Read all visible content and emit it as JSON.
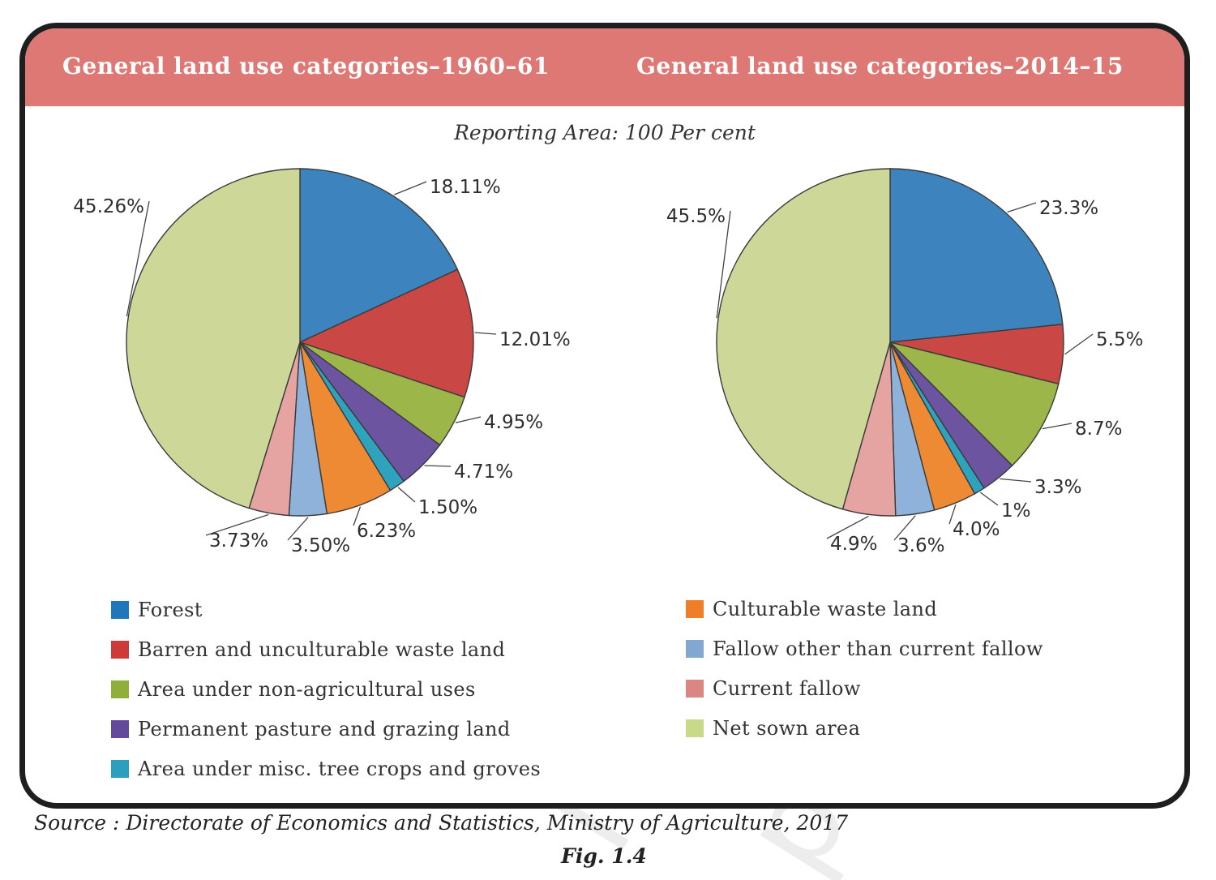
{
  "header": {
    "left_title": "General land use categories–1960–61",
    "right_title": "General land use categories–2014–15"
  },
  "subtitle": "Reporting Area: 100 Per cent",
  "chart_data": [
    {
      "type": "pie",
      "title": "General land use categories–1960–61",
      "categories": [
        "Forest",
        "Barren and unculturable waste land",
        "Area under non-agricultural uses",
        "Permanent pasture and grazing land",
        "Area under misc. tree crops and groves",
        "Culturable waste land",
        "Fallow other than current fallow",
        "Current fallow",
        "Net sown area"
      ],
      "values": [
        18.11,
        12.01,
        4.95,
        4.71,
        1.5,
        6.23,
        3.5,
        3.73,
        45.26
      ],
      "labels": [
        "18.11%",
        "12.01%",
        "4.95%",
        "4.71%",
        "1.50%",
        "6.23%",
        "3.50%",
        "3.73%",
        "45.26%"
      ]
    },
    {
      "type": "pie",
      "title": "General land use categories–2014–15",
      "categories": [
        "Forest",
        "Barren and unculturable waste land",
        "Area under non-agricultural uses",
        "Permanent pasture and grazing land",
        "Area under misc. tree crops and groves",
        "Culturable waste land",
        "Fallow other than current fallow",
        "Current fallow",
        "Net sown area"
      ],
      "values": [
        23.3,
        5.5,
        8.7,
        3.3,
        1,
        4.0,
        3.6,
        4.9,
        45.5
      ],
      "labels": [
        "23.3%",
        "5.5%",
        "8.7%",
        "3.3%",
        "1%",
        "4.0%",
        "3.6%",
        "4.9%",
        "45.5%"
      ]
    }
  ],
  "colors": [
    "#3d84be",
    "#c94845",
    "#9db64a",
    "#6d54a0",
    "#2fa3be",
    "#ef8a34",
    "#8eb2d9",
    "#e5a3a2",
    "#cdd898"
  ],
  "legend": {
    "items": [
      "Forest",
      "Barren and unculturable waste land",
      "Area under non-agricultural uses",
      "Permanent pasture and grazing land",
      "Area under misc. tree crops and groves",
      "Culturable waste land",
      "Fallow other than current fallow",
      "Current fallow",
      "Net sown area"
    ]
  },
  "watermark": {
    "line1": "NCERT",
    "line2": "published"
  },
  "source": "Source : Directorate of Economics and Statistics, Ministry of Agriculture, 2017",
  "figure_label": "Fig. 1.4"
}
